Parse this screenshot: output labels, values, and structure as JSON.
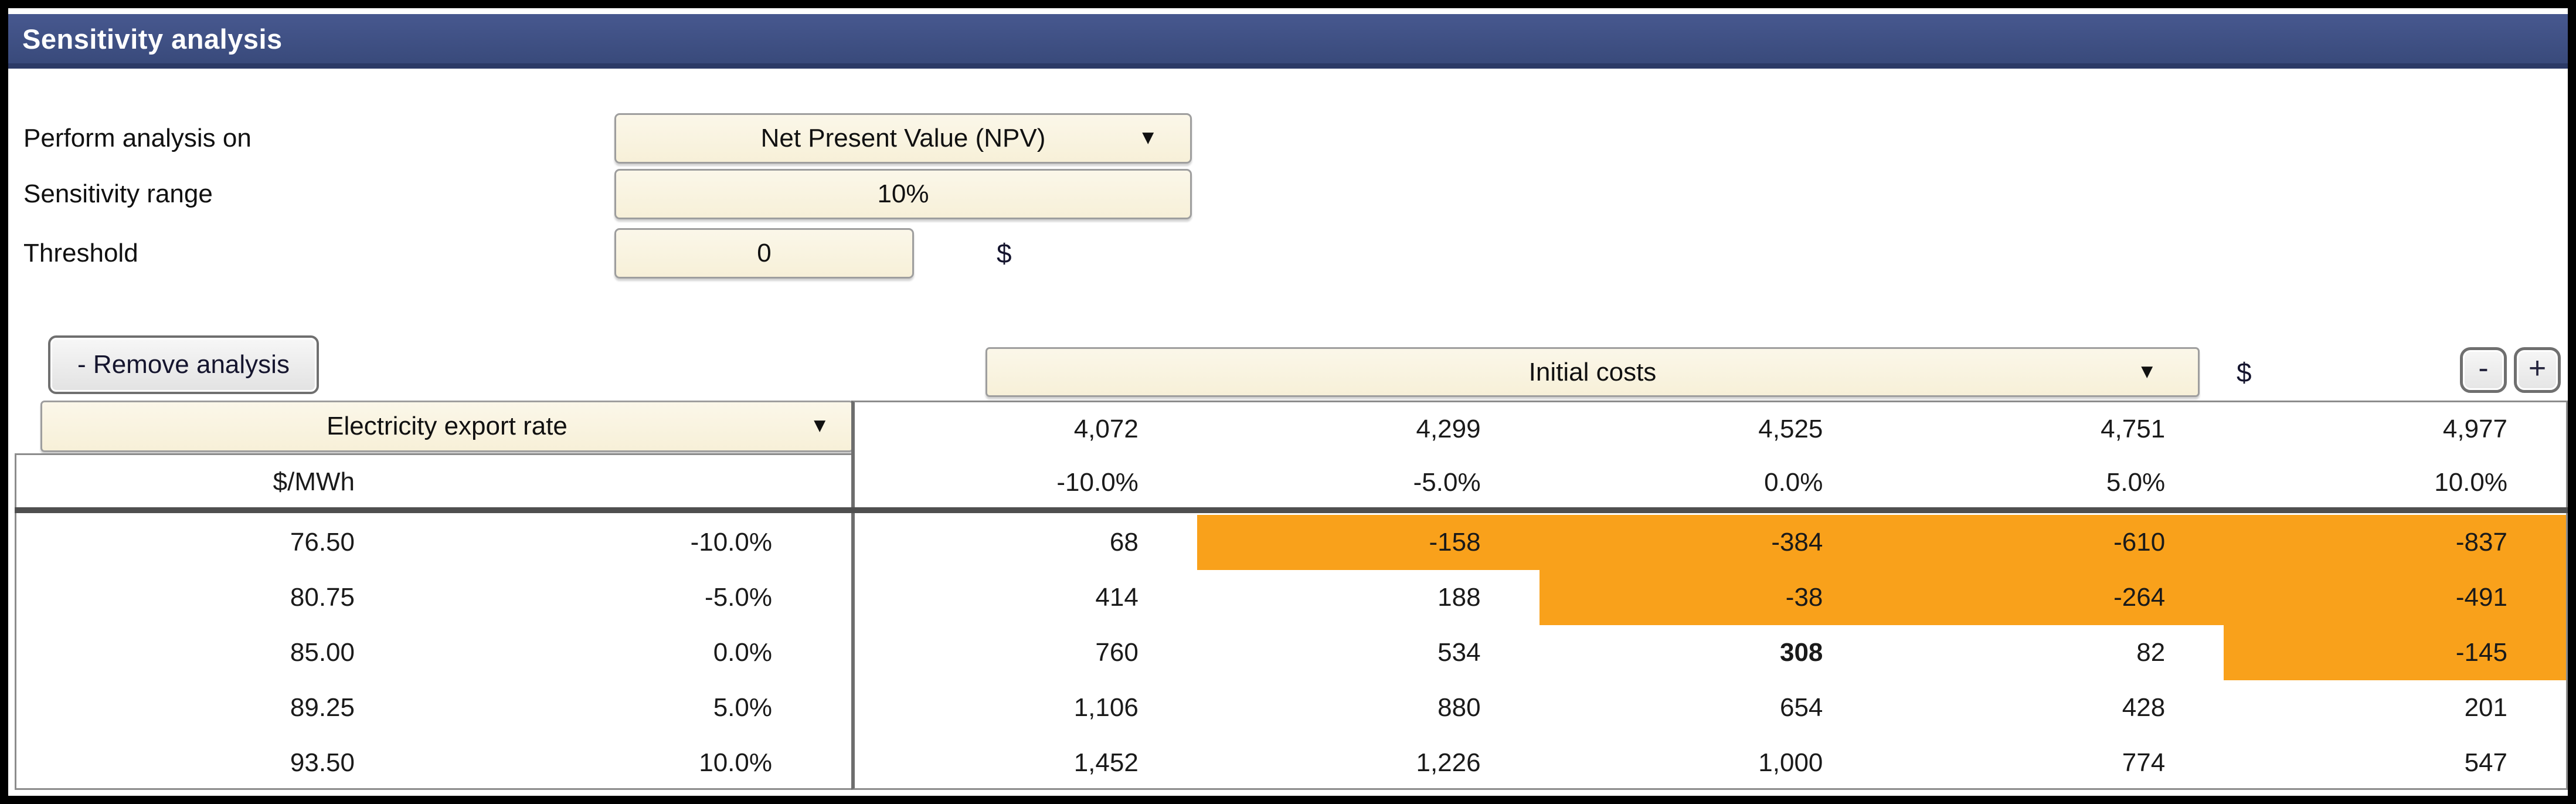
{
  "title_bar": {
    "title": "Sensitivity analysis"
  },
  "icons": {
    "dropdown_arrow": "▼"
  },
  "form": {
    "perform_analysis": {
      "label": "Perform analysis on",
      "value": "Net Present Value (NPV)"
    },
    "sensitivity_range": {
      "label": "Sensitivity range",
      "value": "10%"
    },
    "threshold": {
      "label": "Threshold",
      "value": "0",
      "unit": "$"
    }
  },
  "toolbar": {
    "remove_analysis_label": "- Remove analysis",
    "remove_level_label": "-",
    "add_level_label": "+"
  },
  "sensitivity_table": {
    "type": "table",
    "column_parameter": {
      "name": "Initial costs",
      "unit": "$"
    },
    "row_parameter": {
      "name": "Electricity export rate",
      "unit": "$/MWh"
    },
    "column_values": [
      "4,072",
      "4,299",
      "4,525",
      "4,751",
      "4,977"
    ],
    "column_percents": [
      "-10.0%",
      "-5.0%",
      "0.0%",
      "5.0%",
      "10.0%"
    ],
    "row_values": [
      "76.50",
      "80.75",
      "85.00",
      "89.25",
      "93.50"
    ],
    "row_percents": [
      "-10.0%",
      "-5.0%",
      "0.0%",
      "5.0%",
      "10.0%"
    ],
    "cells": [
      [
        "68",
        "-158",
        "-384",
        "-610",
        "-837"
      ],
      [
        "414",
        "188",
        "-38",
        "-264",
        "-491"
      ],
      [
        "760",
        "534",
        "308",
        "82",
        "-145"
      ],
      [
        "1,106",
        "880",
        "654",
        "428",
        "201"
      ],
      [
        "1,452",
        "1,226",
        "1,000",
        "774",
        "547"
      ]
    ],
    "base_case_cell": {
      "row": 2,
      "col": 2
    },
    "highlight": {
      "rule": "value below threshold",
      "color": "#F9A11B"
    }
  },
  "colors": {
    "title_bar": "#3C4D80",
    "field_background": "#F9F3DF",
    "highlight_orange": "#F9A11B"
  }
}
